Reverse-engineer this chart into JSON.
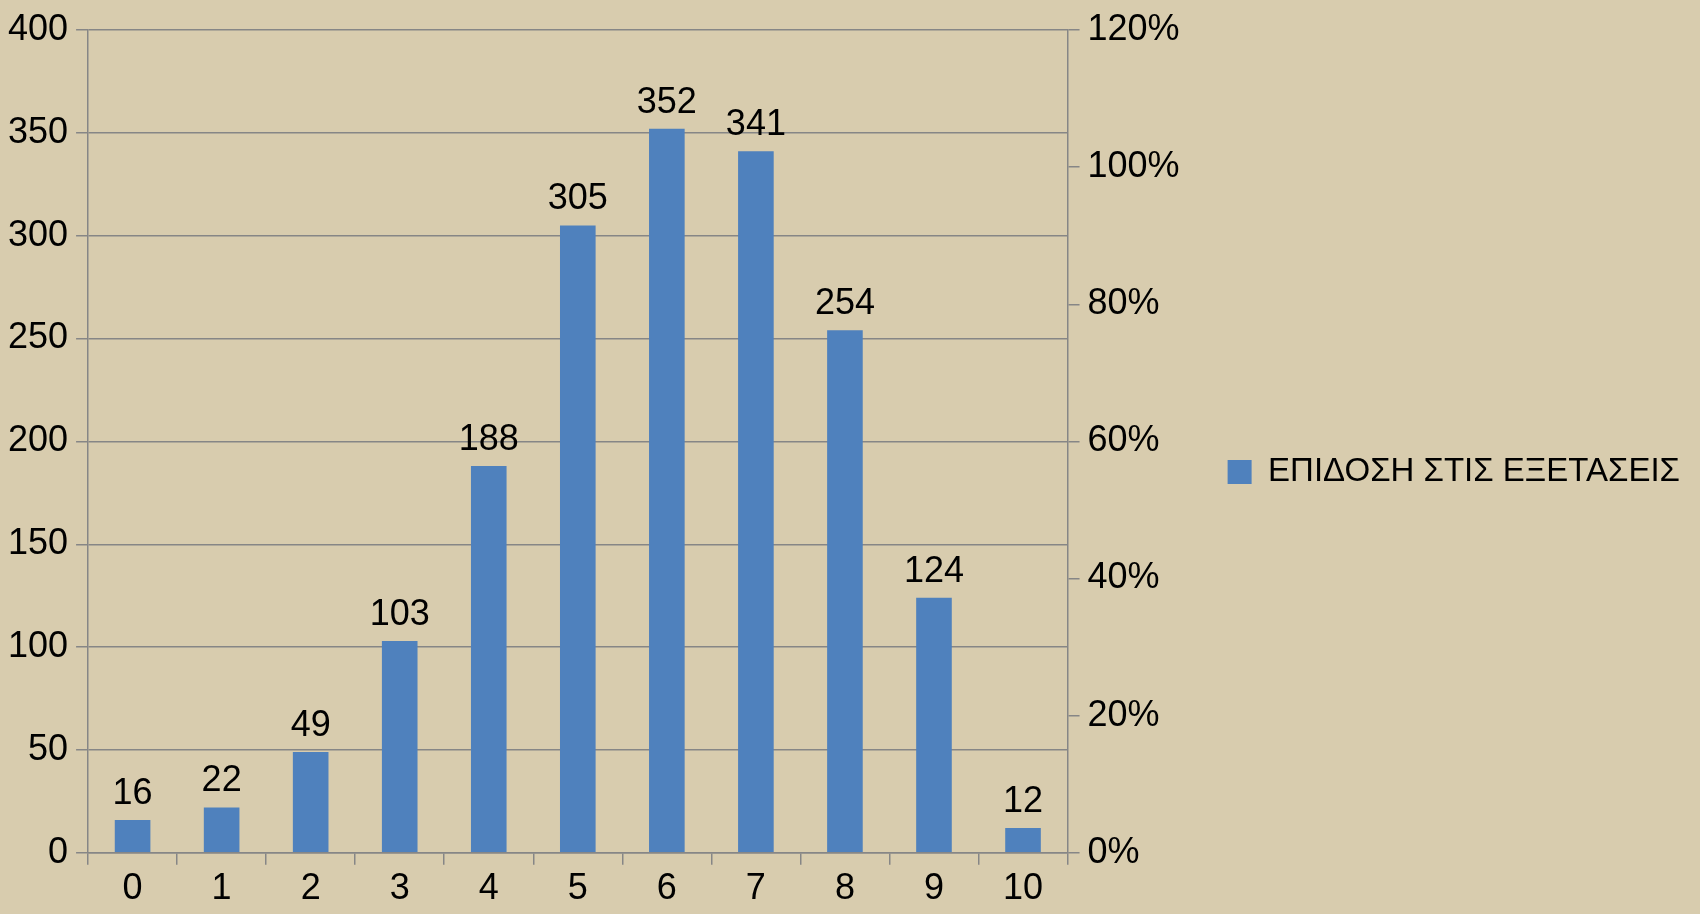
{
  "chart_data": {
    "type": "bar",
    "categories": [
      "0",
      "1",
      "2",
      "3",
      "4",
      "5",
      "6",
      "7",
      "8",
      "9",
      "10"
    ],
    "series": [
      {
        "name": "ΕΠΙΔΟΣΗ ΣΤΙΣ ΕΞΕΤΑΣΕΙΣ",
        "color": "#4f81bd",
        "values": [
          16,
          22,
          49,
          103,
          188,
          305,
          352,
          341,
          254,
          124,
          12
        ]
      }
    ],
    "ylim": [
      0,
      400
    ],
    "yticks": [
      0,
      50,
      100,
      150,
      200,
      250,
      300,
      350,
      400
    ],
    "y2lim": [
      0,
      120
    ],
    "y2ticks": [
      {
        "value": 0,
        "label": "0%"
      },
      {
        "value": 20,
        "label": "20%"
      },
      {
        "value": 40,
        "label": "40%"
      },
      {
        "value": 60,
        "label": "60%"
      },
      {
        "value": 80,
        "label": "80%"
      },
      {
        "value": 100,
        "label": "100%"
      },
      {
        "value": 120,
        "label": "120%"
      }
    ],
    "grid": "y",
    "legend": "right",
    "data_labels": true
  }
}
